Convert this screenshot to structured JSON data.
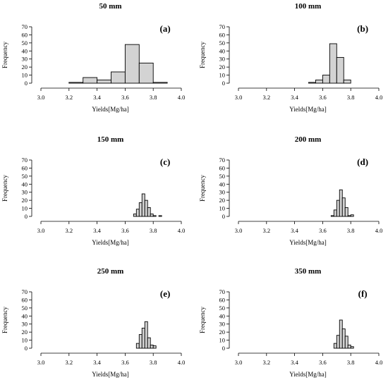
{
  "chart_data": [
    {
      "type": "bar",
      "title": "50 mm",
      "panel": "(a)",
      "xlabel": "Yields[Mg/ha]",
      "ylabel": "Frequency",
      "xlim": [
        3.0,
        4.0
      ],
      "ylim": [
        0,
        70
      ],
      "xticks": [
        "3.0",
        "3.2",
        "3.4",
        "3.6",
        "3.8",
        "4.0"
      ],
      "yticks": [
        "0",
        "10",
        "20",
        "30",
        "40",
        "50",
        "60",
        "70"
      ],
      "bin_edges": [
        3.2,
        3.3,
        3.4,
        3.5,
        3.6,
        3.7,
        3.8,
        3.9
      ],
      "values": [
        1,
        7,
        4,
        14,
        48,
        25,
        1
      ]
    },
    {
      "type": "bar",
      "title": "100 mm",
      "panel": "(b)",
      "xlabel": "Yields[Mg/ha]",
      "ylabel": "Frequency",
      "xlim": [
        3.0,
        4.0
      ],
      "ylim": [
        0,
        70
      ],
      "xticks": [
        "3.0",
        "3.2",
        "3.4",
        "3.6",
        "3.8",
        "4.0"
      ],
      "yticks": [
        "0",
        "10",
        "20",
        "30",
        "40",
        "50",
        "60",
        "70"
      ],
      "bin_edges": [
        3.5,
        3.55,
        3.6,
        3.65,
        3.7,
        3.75,
        3.8
      ],
      "values": [
        1,
        4,
        10,
        49,
        32,
        4
      ]
    },
    {
      "type": "bar",
      "title": "150 mm",
      "panel": "(c)",
      "xlabel": "Yields[Mg/ha]",
      "ylabel": "Frequency",
      "xlim": [
        3.0,
        4.0
      ],
      "ylim": [
        0,
        70
      ],
      "xticks": [
        "3.0",
        "3.2",
        "3.4",
        "3.6",
        "3.8",
        "4.0"
      ],
      "yticks": [
        "0",
        "10",
        "20",
        "30",
        "40",
        "50",
        "60",
        "70"
      ],
      "bin_edges": [
        3.66,
        3.68,
        3.7,
        3.72,
        3.74,
        3.76,
        3.78,
        3.8,
        3.82,
        3.84,
        3.86
      ],
      "values": [
        3,
        9,
        17,
        28,
        20,
        11,
        3,
        1,
        0,
        1
      ]
    },
    {
      "type": "bar",
      "title": "200 mm",
      "panel": "(d)",
      "xlabel": "Yields[Mg/ha]",
      "ylabel": "Frequency",
      "xlim": [
        3.0,
        4.0
      ],
      "ylim": [
        0,
        70
      ],
      "xticks": [
        "3.0",
        "3.2",
        "3.4",
        "3.6",
        "3.8",
        "4.0"
      ],
      "yticks": [
        "0",
        "10",
        "20",
        "30",
        "40",
        "50",
        "60",
        "70"
      ],
      "bin_edges": [
        3.66,
        3.68,
        3.7,
        3.72,
        3.74,
        3.76,
        3.78,
        3.8,
        3.82
      ],
      "values": [
        1,
        8,
        20,
        33,
        23,
        11,
        1,
        2
      ]
    },
    {
      "type": "bar",
      "title": "250 mm",
      "panel": "(e)",
      "xlabel": "Yields[Mg/ha]",
      "ylabel": "Frequency",
      "xlim": [
        3.0,
        4.0
      ],
      "ylim": [
        0,
        70
      ],
      "xticks": [
        "3.0",
        "3.2",
        "3.4",
        "3.6",
        "3.8",
        "4.0"
      ],
      "yticks": [
        "0",
        "10",
        "20",
        "30",
        "40",
        "50",
        "60",
        "70"
      ],
      "bin_edges": [
        3.68,
        3.7,
        3.72,
        3.74,
        3.76,
        3.78,
        3.8,
        3.82
      ],
      "values": [
        6,
        17,
        25,
        33,
        13,
        4,
        3
      ]
    },
    {
      "type": "bar",
      "title": "350 mm",
      "panel": "(f)",
      "xlabel": "Yields[Mg/ha]",
      "ylabel": "Frequency",
      "xlim": [
        3.0,
        4.0
      ],
      "ylim": [
        0,
        70
      ],
      "xticks": [
        "3.0",
        "3.2",
        "3.4",
        "3.6",
        "3.8",
        "4.0"
      ],
      "yticks": [
        "0",
        "10",
        "20",
        "30",
        "40",
        "50",
        "60",
        "70"
      ],
      "bin_edges": [
        3.68,
        3.7,
        3.72,
        3.74,
        3.76,
        3.78,
        3.8,
        3.82
      ],
      "values": [
        6,
        16,
        35,
        24,
        15,
        4,
        2
      ]
    }
  ],
  "colors": {
    "bar_fill": "#d3d3d3",
    "bar_stroke": "#000000",
    "axis": "#000000"
  }
}
